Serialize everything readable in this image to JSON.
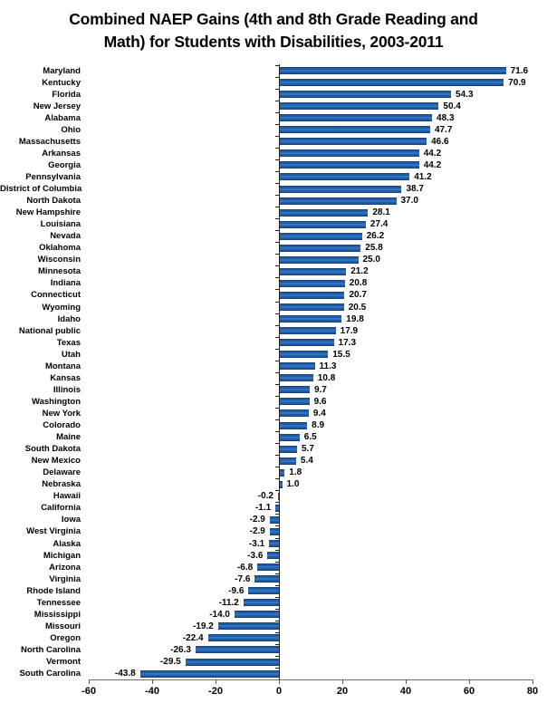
{
  "chart_data": {
    "type": "bar",
    "orientation": "horizontal",
    "title": "Combined NAEP Gains (4th and 8th Grade Reading and Math) for Students with Disabilities, 2003-2011",
    "title_lines": [
      "Combined NAEP Gains (4th and 8th Grade Reading and",
      "Math) for Students with Disabilities, 2003-2011"
    ],
    "categories": [
      "Maryland",
      "Kentucky",
      "Florida",
      "New Jersey",
      "Alabama",
      "Ohio",
      "Massachusetts",
      "Arkansas",
      "Georgia",
      "Pennsylvania",
      "District of Columbia",
      "North Dakota",
      "New Hampshire",
      "Louisiana",
      "Nevada",
      "Oklahoma",
      "Wisconsin",
      "Minnesota",
      "Indiana",
      "Connecticut",
      "Wyoming",
      "Idaho",
      "National public",
      "Texas",
      "Utah",
      "Montana",
      "Kansas",
      "Illinois",
      "Washington",
      "New York",
      "Colorado",
      "Maine",
      "South Dakota",
      "New Mexico",
      "Delaware",
      "Nebraska",
      "Hawaii",
      "California",
      "Iowa",
      "West Virginia",
      "Alaska",
      "Michigan",
      "Arizona",
      "Virginia",
      "Rhode Island",
      "Tennessee",
      "Mississippi",
      "Missouri",
      "Oregon",
      "North Carolina",
      "Vermont",
      "South Carolina"
    ],
    "values": [
      71.6,
      70.9,
      54.3,
      50.4,
      48.3,
      47.7,
      46.6,
      44.2,
      44.2,
      41.2,
      38.7,
      37.0,
      28.1,
      27.4,
      26.2,
      25.8,
      25.0,
      21.2,
      20.8,
      20.7,
      20.5,
      19.8,
      17.9,
      17.3,
      15.5,
      11.3,
      10.8,
      9.7,
      9.6,
      9.4,
      8.9,
      6.5,
      5.7,
      5.4,
      1.8,
      1.0,
      -0.2,
      -1.1,
      -2.9,
      -2.9,
      -3.1,
      -3.6,
      -6.8,
      -7.6,
      -9.6,
      -11.2,
      -14.0,
      -19.2,
      -22.4,
      -26.3,
      -29.5,
      -43.8
    ],
    "xlabel": "",
    "ylabel": "",
    "xlim": [
      -60,
      80
    ],
    "x_ticks": [
      -60,
      -40,
      -20,
      0,
      20,
      40,
      60,
      80
    ],
    "grid": "off",
    "legend": "none",
    "bar_color": "#1D55A0",
    "bar_highlight_color": "#3F80C8",
    "bar_shadow_color": "#16396B",
    "axis_line_color": "#6e6e6e",
    "text_color": "#000000",
    "value_label_decimals": 1
  }
}
